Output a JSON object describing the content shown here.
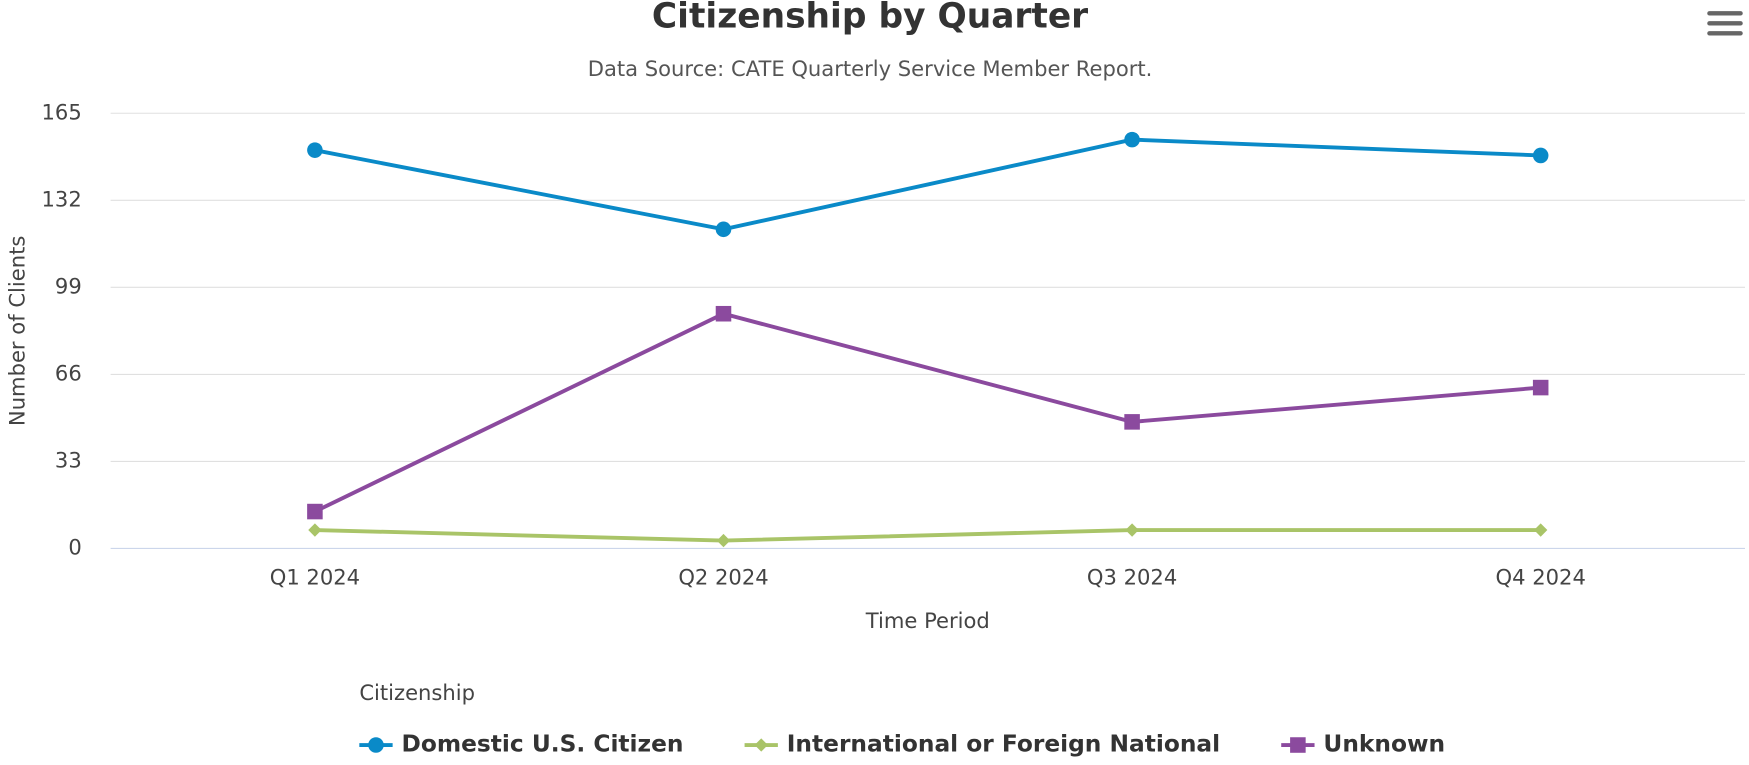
{
  "chart_data": {
    "type": "line",
    "title": "Citizenship by Quarter",
    "subtitle": "Data Source: CATE Quarterly Service Member Report.",
    "x_label": "Time Period",
    "y_label": "Number of Clients",
    "legend_title": "Citizenship",
    "categories": [
      "Q1 2024",
      "Q2 2024",
      "Q3 2024",
      "Q4 2024"
    ],
    "series": [
      {
        "name": "Domestic U.S. Citizen",
        "color": "#0a8ac8",
        "marker": "circle",
        "values": [
          151,
          121,
          155,
          149
        ]
      },
      {
        "name": "International or Foreign National",
        "color": "#a9c468",
        "marker": "diamond",
        "values": [
          7,
          3,
          7,
          7
        ]
      },
      {
        "name": "Unknown",
        "color": "#8b4a9e",
        "marker": "square",
        "values": [
          14,
          89,
          48,
          61
        ]
      }
    ],
    "ylim": [
      0,
      165
    ],
    "yticks": [
      0,
      33,
      66,
      99,
      132,
      165
    ],
    "grid": true,
    "legend": "bottom"
  }
}
